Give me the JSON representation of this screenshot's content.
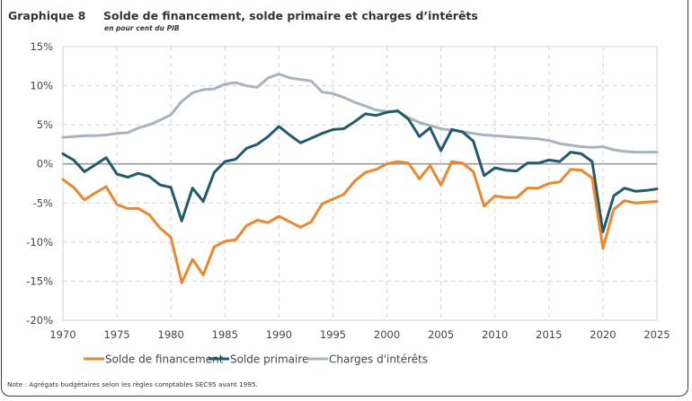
{
  "header": {
    "number": "Graphique 8",
    "title": "Solde de financement, solde primaire et charges d’intérêts",
    "subtitle": "en pour cent du PIB"
  },
  "note": "Note : Agrégats budgétaires selon les règles comptables SEC95 avant 1995.",
  "chart_data": {
    "type": "line",
    "title": "Solde de financement, solde primaire et charges d’intérêts",
    "subtitle": "en pour cent du PIB",
    "xlabel": "",
    "ylabel": "",
    "xlim": [
      1970,
      2025
    ],
    "ylim": [
      -20,
      15
    ],
    "x_ticks": [
      1970,
      1975,
      1980,
      1985,
      1990,
      1995,
      2000,
      2005,
      2010,
      2015,
      2020,
      2025
    ],
    "x_tick_labels": [
      "1970",
      "1975",
      "1980",
      "1985",
      "1990",
      "1995",
      "2000",
      "2005",
      "2010",
      "2015",
      "2020",
      "2025"
    ],
    "y_ticks": [
      15,
      10,
      5,
      0,
      -5,
      -10,
      -15,
      -20
    ],
    "y_tick_labels": [
      "15%",
      "10%",
      "5%",
      "0%",
      "-5%",
      "-10%",
      "-15%",
      "-20%"
    ],
    "grid": true,
    "legend_position": "bottom",
    "x": [
      1970,
      1971,
      1972,
      1973,
      1974,
      1975,
      1976,
      1977,
      1978,
      1979,
      1980,
      1981,
      1982,
      1983,
      1984,
      1985,
      1986,
      1987,
      1988,
      1989,
      1990,
      1991,
      1992,
      1993,
      1994,
      1995,
      1996,
      1997,
      1998,
      1999,
      2000,
      2001,
      2002,
      2003,
      2004,
      2005,
      2006,
      2007,
      2008,
      2009,
      2010,
      2011,
      2012,
      2013,
      2014,
      2015,
      2016,
      2017,
      2018,
      2019,
      2020,
      2021,
      2022,
      2023,
      2024,
      2025
    ],
    "series": [
      {
        "name": "Solde de financement",
        "color": "#f0862a",
        "values": [
          -2.0,
          -3.0,
          -4.6,
          -3.7,
          -2.9,
          -5.2,
          -5.7,
          -5.7,
          -6.5,
          -8.2,
          -9.4,
          -15.2,
          -12.2,
          -14.2,
          -10.6,
          -9.9,
          -9.7,
          -7.9,
          -7.2,
          -7.5,
          -6.7,
          -7.4,
          -8.1,
          -7.4,
          -5.1,
          -4.5,
          -3.9,
          -2.2,
          -1.1,
          -0.7,
          0.0,
          0.3,
          0.1,
          -1.9,
          -0.2,
          -2.7,
          0.3,
          0.1,
          -1.0,
          -5.4,
          -4.1,
          -4.3,
          -4.3,
          -3.1,
          -3.1,
          -2.5,
          -2.3,
          -0.7,
          -0.8,
          -1.8,
          -10.8,
          -5.8,
          -4.7,
          -5.0,
          -4.9,
          -4.8
        ]
      },
      {
        "name": "Solde primaire",
        "color": "#1f5a6e",
        "values": [
          1.3,
          0.5,
          -1.0,
          -0.1,
          0.8,
          -1.3,
          -1.7,
          -1.2,
          -1.6,
          -2.7,
          -3.0,
          -7.3,
          -3.1,
          -4.8,
          -1.1,
          0.3,
          0.6,
          2.0,
          2.5,
          3.5,
          4.8,
          3.7,
          2.7,
          3.3,
          3.9,
          4.4,
          4.5,
          5.4,
          6.4,
          6.2,
          6.6,
          6.8,
          5.7,
          3.5,
          4.6,
          1.7,
          4.4,
          4.1,
          2.9,
          -1.5,
          -0.5,
          -0.8,
          -0.9,
          0.1,
          0.1,
          0.5,
          0.3,
          1.5,
          1.3,
          0.3,
          -8.7,
          -4.1,
          -3.1,
          -3.5,
          -3.4,
          -3.2
        ]
      },
      {
        "name": "Charges d'intérêts",
        "color": "#a9b3be",
        "values": [
          3.4,
          3.5,
          3.6,
          3.6,
          3.7,
          3.9,
          4.0,
          4.6,
          5.0,
          5.6,
          6.3,
          8.0,
          9.1,
          9.5,
          9.6,
          10.2,
          10.4,
          10.0,
          9.8,
          11.0,
          11.5,
          11.0,
          10.8,
          10.6,
          9.2,
          9.0,
          8.5,
          7.9,
          7.4,
          6.9,
          6.7,
          6.7,
          5.9,
          5.3,
          4.9,
          4.5,
          4.3,
          4.1,
          3.9,
          3.7,
          3.6,
          3.5,
          3.4,
          3.3,
          3.2,
          3.0,
          2.6,
          2.4,
          2.2,
          2.1,
          2.2,
          1.8,
          1.6,
          1.5,
          1.5,
          1.5
        ]
      }
    ]
  }
}
